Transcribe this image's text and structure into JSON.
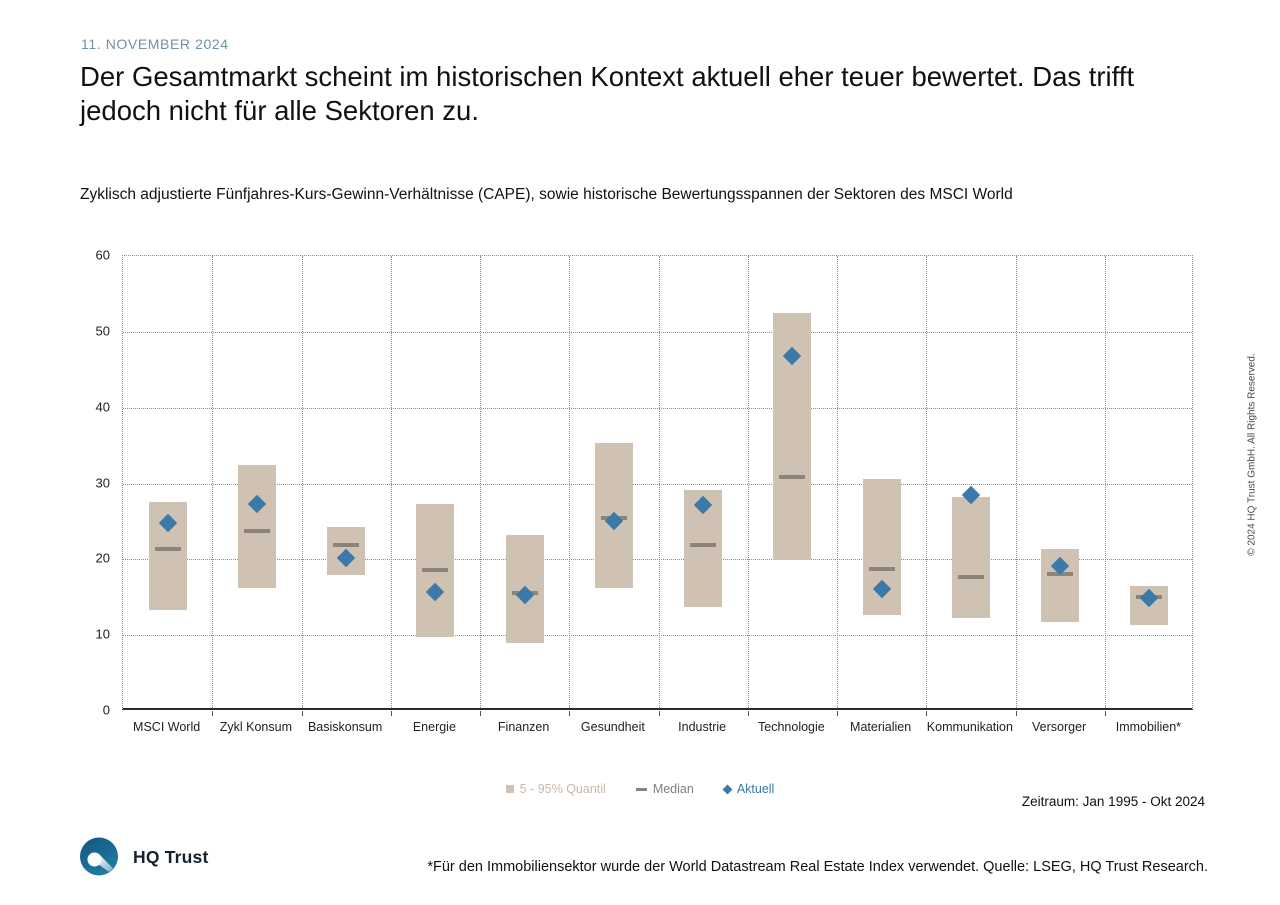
{
  "header": {
    "date": "11. NOVEMBER 2024",
    "title": "Der Gesamtmarkt scheint im historischen Kontext aktuell eher teuer bewertet. Das trifft jedoch nicht für alle Sektoren zu.",
    "subtitle": "Zyklisch adjustierte Fünfjahres-Kurs-Gewinn-Verhältnisse (CAPE), sowie historische Bewertungsspannen der Sektoren des MSCI World"
  },
  "chart_data": {
    "type": "bar",
    "subtype": "floating-range-with-markers",
    "title": "Zyklisch adjustierte Fünfjahres-Kurs-Gewinn-Verhältnisse (CAPE), sowie historische Bewertungsspannen der Sektoren des MSCI World",
    "categories": [
      "MSCI World",
      "Zykl Konsum",
      "Basiskonsum",
      "Energie",
      "Finanzen",
      "Gesundheit",
      "Industrie",
      "Technologie",
      "Materialien",
      "Kommunikation",
      "Versorger",
      "Immobilien*"
    ],
    "series": [
      {
        "name": "5 - 95% Quantil",
        "marker": "range-bar",
        "low": [
          13.3,
          16.2,
          17.9,
          9.7,
          9.0,
          16.2,
          13.7,
          19.9,
          12.7,
          12.2,
          11.8,
          11.3
        ],
        "high": [
          27.5,
          32.5,
          24.2,
          27.3,
          23.2,
          35.4,
          29.2,
          52.5,
          30.6,
          28.2,
          21.3,
          16.5
        ]
      },
      {
        "name": "Median",
        "marker": "dash",
        "values": [
          21.3,
          23.8,
          21.9,
          18.6,
          15.5,
          25.4,
          21.9,
          30.8,
          18.7,
          17.7,
          18.1,
          15.0
        ]
      },
      {
        "name": "Aktuell",
        "marker": "diamond",
        "values": [
          24.8,
          27.3,
          20.2,
          15.7,
          15.3,
          25.1,
          27.1,
          46.8,
          16.1,
          28.5,
          19.1,
          14.9
        ]
      }
    ],
    "ylim": [
      0,
      60
    ],
    "yticks": [
      0,
      10,
      20,
      30,
      40,
      50,
      60
    ],
    "xlabel": "",
    "ylabel": "",
    "grid": "dotted horizontal and vertical category separators",
    "legend_position": "bottom-center"
  },
  "legend": {
    "quantil": "5 - 95% Quantil",
    "median": "Median",
    "aktuell": "Aktuell"
  },
  "footer": {
    "zeitraum": "Zeitraum: Jan 1995 - Okt 2024",
    "copyright": "© 2024 HQ Trust GmbH. All Rights Reserved.",
    "logo_text": "HQ Trust",
    "footnote": "*Für den Immobiliensektor wurde der World Datastream Real Estate Index verwendet. Quelle: LSEG, HQ Trust Research."
  },
  "colors": {
    "bar": "#d0c2b2",
    "median": "#8c8379",
    "aktuell": "#3a79a8",
    "date_text": "#6d93a3",
    "legend_quantil_text": "#c6b9a9",
    "legend_median_text": "#7f7f7f",
    "legend_aktuell_text": "#3a79a8",
    "grid": "#8a8a8a"
  }
}
